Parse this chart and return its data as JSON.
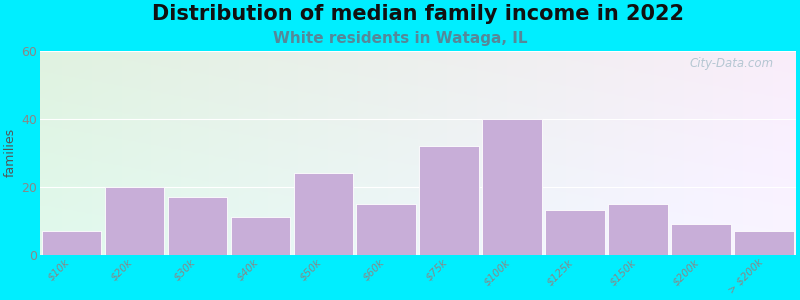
{
  "title": "Distribution of median family income in 2022",
  "subtitle": "White residents in Wataga, IL",
  "ylabel": "families",
  "categories": [
    "$10k",
    "$20k",
    "$30k",
    "$40k",
    "$50k",
    "$60k",
    "$75k",
    "$100k",
    "$125k",
    "$150k",
    "$200k",
    "> $200k"
  ],
  "values": [
    7,
    20,
    17,
    11,
    24,
    15,
    32,
    40,
    13,
    15,
    9,
    7
  ],
  "bar_color": "#c8aed8",
  "bar_edgecolor": "#ffffff",
  "ylim": [
    0,
    60
  ],
  "yticks": [
    0,
    20,
    40,
    60
  ],
  "bg_outer": "#00eeff",
  "bg_plot_topleft": "#d8eec8",
  "bg_plot_topright": "#e8f4f8",
  "bg_plot_bottom": "#f0f8ff",
  "title_fontsize": 15,
  "subtitle_fontsize": 11,
  "subtitle_color": "#558899",
  "ylabel_fontsize": 9,
  "watermark": "City-Data.com",
  "watermark_color": "#aac0cc",
  "tick_color": "#888888",
  "tick_fontsize": 7.5
}
